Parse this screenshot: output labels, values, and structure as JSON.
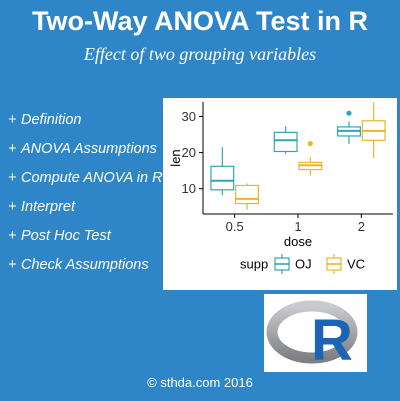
{
  "header": {
    "title": "Two-Way ANOVA Test in R",
    "subtitle": "Effect of two grouping variables"
  },
  "menu": {
    "bullet": "+",
    "items": [
      {
        "label": "Definition"
      },
      {
        "label": "ANOVA Assumptions"
      },
      {
        "label": "Compute ANOVA in R"
      },
      {
        "label": "Interpret"
      },
      {
        "label": "Post Hoc Test"
      },
      {
        "label": "Check Assumptions"
      }
    ]
  },
  "footer": {
    "copyright": "© sthda.com 2016"
  },
  "logo": {
    "letter": "R",
    "ring_color": "#a7a9ac",
    "letter_color": "#1c65b4"
  },
  "colors": {
    "background": "#2e86c8",
    "oj": "#2fa6b7",
    "vc": "#e8b62a"
  },
  "chart_data": {
    "type": "box",
    "title": "",
    "xlabel": "dose",
    "ylabel": "len",
    "categories": [
      "0.5",
      "1",
      "2"
    ],
    "ylim": [
      3,
      34
    ],
    "yticks": [
      10,
      20,
      30
    ],
    "legend": {
      "title": "supp",
      "position": "bottom"
    },
    "series": [
      {
        "name": "OJ",
        "color": "#2fa6b7",
        "boxes": [
          {
            "min": 8.2,
            "q1": 9.7,
            "median": 12.2,
            "q3": 16.2,
            "max": 21.5,
            "outliers": []
          },
          {
            "min": 19.7,
            "q1": 20.3,
            "median": 23.4,
            "q3": 25.6,
            "max": 27.3,
            "outliers": []
          },
          {
            "min": 22.4,
            "q1": 24.6,
            "median": 26.0,
            "q3": 27.1,
            "max": 30.9,
            "outliers": [
              30.9
            ]
          }
        ]
      },
      {
        "name": "VC",
        "color": "#e8b62a",
        "boxes": [
          {
            "min": 4.2,
            "q1": 5.9,
            "median": 7.2,
            "q3": 10.9,
            "max": 11.5,
            "outliers": []
          },
          {
            "min": 13.6,
            "q1": 15.3,
            "median": 16.5,
            "q3": 17.3,
            "max": 18.8,
            "outliers": [
              22.5
            ]
          },
          {
            "min": 18.5,
            "q1": 23.4,
            "median": 26.0,
            "q3": 28.8,
            "max": 33.9,
            "outliers": []
          }
        ]
      }
    ]
  }
}
